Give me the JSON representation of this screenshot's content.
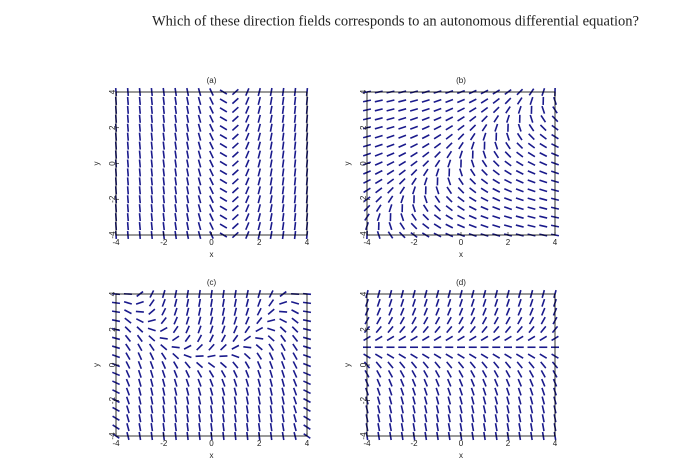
{
  "question": "Which of these direction fields corresponds to an autonomous differential equation?",
  "chart_data": [
    {
      "type": "quiver",
      "title": "(a)",
      "xlabel": "x",
      "ylabel": "y",
      "xlim": [
        -4,
        4
      ],
      "ylim": [
        -4,
        4
      ],
      "xticks": [
        -4,
        -2,
        0,
        2,
        4
      ],
      "yticks": [
        -4,
        -2,
        0,
        2,
        4
      ],
      "color": "#1a1a8c"
    },
    {
      "type": "quiver",
      "title": "(b)",
      "xlabel": "x",
      "ylabel": "y",
      "xlim": [
        -4,
        4
      ],
      "ylim": [
        -4,
        4
      ],
      "xticks": [
        -4,
        -2,
        0,
        2,
        4
      ],
      "yticks": [
        -4,
        -2,
        0,
        2,
        4
      ],
      "color": "#1a1a8c"
    },
    {
      "type": "quiver",
      "title": "(c)",
      "xlabel": "x",
      "ylabel": "y",
      "xlim": [
        -4,
        4
      ],
      "ylim": [
        -4,
        4
      ],
      "xticks": [
        -4,
        -2,
        0,
        2,
        4
      ],
      "yticks": [
        -4,
        -2,
        0,
        2,
        4
      ],
      "color": "#1a1a8c"
    },
    {
      "type": "quiver",
      "title": "(d)",
      "xlabel": "x",
      "ylabel": "y",
      "xlim": [
        -4,
        4
      ],
      "ylim": [
        -4,
        4
      ],
      "xticks": [
        -4,
        -2,
        0,
        2,
        4
      ],
      "yticks": [
        -4,
        -2,
        0,
        2,
        4
      ],
      "color": "#1a1a8c"
    }
  ]
}
